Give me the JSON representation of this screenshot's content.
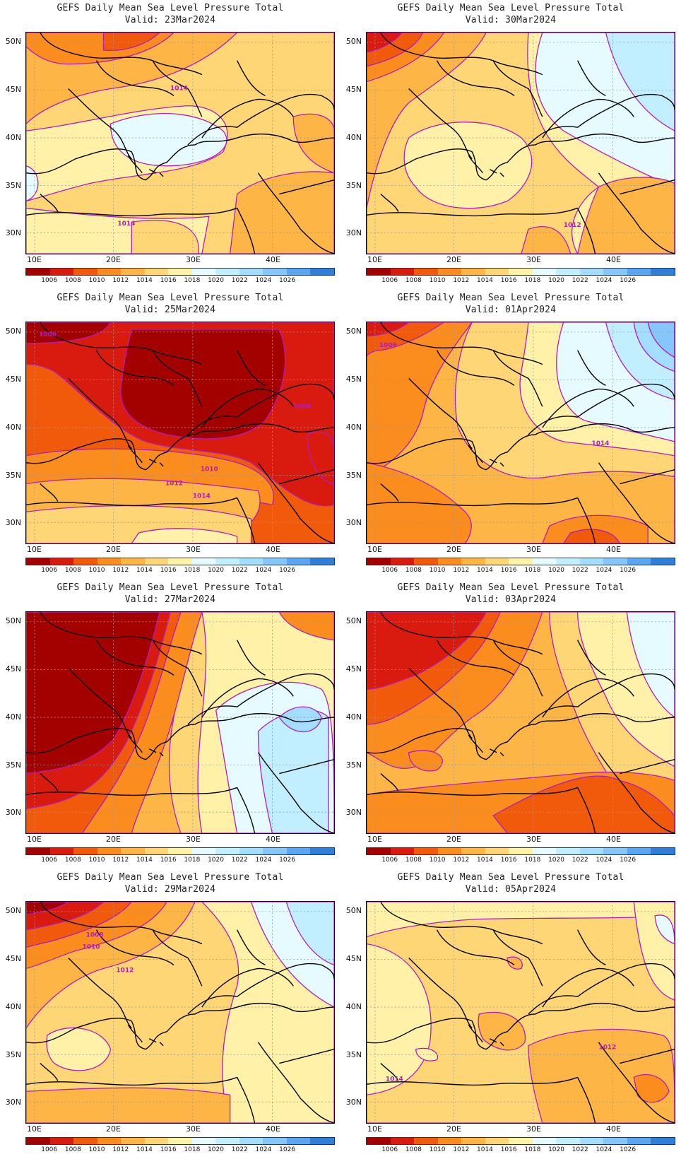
{
  "colorbar": {
    "colors": [
      "#a30000",
      "#d91a0f",
      "#f05a0a",
      "#fb8c1e",
      "#fdb545",
      "#fed676",
      "#fff2a8",
      "#e6fbff",
      "#c2efff",
      "#a3ddff",
      "#86c7fb",
      "#5aa6f2",
      "#2f7ed8"
    ],
    "labels": [
      "1006",
      "1008",
      "1010",
      "1012",
      "1014",
      "1016",
      "1018",
      "1020",
      "1022",
      "1024",
      "1026"
    ]
  },
  "axes": {
    "lat_labels": [
      "50N",
      "45N",
      "40N",
      "35N",
      "30N"
    ],
    "lon_labels": [
      "10E",
      "20E",
      "30E",
      "40E"
    ]
  },
  "panels": [
    {
      "title": "GEFS Daily Mean Sea Level Pressure Total",
      "valid": "Valid: 23Mar2024",
      "scheme": "high",
      "contour_labels": [
        "1014",
        "1014"
      ]
    },
    {
      "title": "GEFS Daily Mean Sea Level Pressure Total",
      "valid": "Valid: 30Mar2024",
      "scheme": "eastHigh",
      "contour_labels": [
        "1012"
      ]
    },
    {
      "title": "GEFS Daily Mean Sea Level Pressure Total",
      "valid": "Valid: 25Mar2024",
      "scheme": "deepLow",
      "contour_labels": [
        "1006",
        "1010",
        "1012",
        "1014",
        "1006"
      ]
    },
    {
      "title": "GEFS Daily Mean Sea Level Pressure Total",
      "valid": "Valid: 01Apr2024",
      "scheme": "nwLow",
      "contour_labels": [
        "1006",
        "1014"
      ]
    },
    {
      "title": "GEFS Daily Mean Sea Level Pressure Total",
      "valid": "Valid: 27Mar2024",
      "scheme": "westLow",
      "contour_labels": []
    },
    {
      "title": "GEFS Daily Mean Sea Level Pressure Total",
      "valid": "Valid: 03Apr2024",
      "scheme": "midLow",
      "contour_labels": []
    },
    {
      "title": "GEFS Daily Mean Sea Level Pressure Total",
      "valid": "Valid: 29Mar2024",
      "scheme": "mild",
      "contour_labels": [
        "1008",
        "1010",
        "1012"
      ]
    },
    {
      "title": "GEFS Daily Mean Sea Level Pressure Total",
      "valid": "Valid: 05Apr2024",
      "scheme": "flat",
      "contour_labels": [
        "1012",
        "1014"
      ]
    }
  ]
}
